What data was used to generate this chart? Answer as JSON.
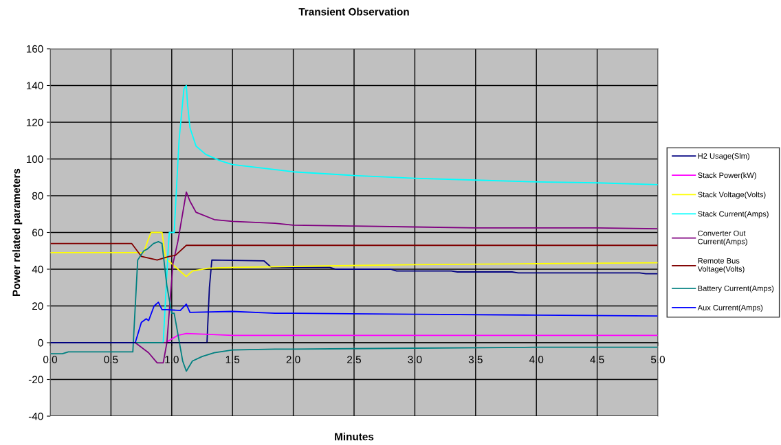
{
  "chart_data": {
    "type": "line",
    "title": "Transient Observation",
    "xlabel": "Minutes",
    "ylabel": "Power related parameters",
    "xlim": [
      0,
      5
    ],
    "xticks": [
      {
        "value": 0,
        "label": "0.0"
      },
      {
        "value": 0.5,
        "label": "0.5"
      },
      {
        "value": 1,
        "label": "1.0"
      },
      {
        "value": 1.5,
        "label": "1.5"
      },
      {
        "value": 2,
        "label": "2.0"
      },
      {
        "value": 2.5,
        "label": "2.5"
      },
      {
        "value": 3,
        "label": "3.0"
      },
      {
        "value": 3.5,
        "label": "3.5"
      },
      {
        "value": 4,
        "label": "4.0"
      },
      {
        "value": 4.5,
        "label": "4.5"
      },
      {
        "value": 5,
        "label": "5.0"
      }
    ],
    "ylim": [
      -40,
      160
    ],
    "yticks": [
      -40,
      -20,
      0,
      20,
      40,
      60,
      80,
      100,
      120,
      140,
      160
    ],
    "grid": true,
    "legend": "right",
    "marker": "none",
    "line_style": "solid",
    "series": [
      {
        "name": "H2 Usage(Slm)",
        "color": "#000080",
        "x": [
          0,
          1.29,
          1.31,
          1.33,
          1.76,
          1.82,
          2.3,
          2.35,
          2.8,
          2.85,
          3.3,
          3.35,
          3.8,
          3.85,
          4.3,
          4.35,
          4.85,
          4.9,
          5.0
        ],
        "values": [
          0,
          0,
          30,
          45,
          44.5,
          41,
          41,
          40,
          40,
          39,
          39,
          38.5,
          38.5,
          38,
          38,
          38,
          38,
          37.5,
          37.5
        ]
      },
      {
        "name": "Stack Power(kW)",
        "color": "#ff00ff",
        "x": [
          0,
          0.95,
          1.05,
          1.12,
          1.3,
          1.5,
          2.0,
          3.0,
          4.0,
          5.0
        ],
        "values": [
          0,
          0,
          4,
          5,
          4.5,
          4,
          4,
          4,
          4,
          4
        ]
      },
      {
        "name": "Stack Voltage(Volts)",
        "color": "#ffff00",
        "x": [
          0,
          0.77,
          0.8,
          0.83,
          0.92,
          0.95,
          1.0,
          1.12,
          1.17,
          1.3,
          1.5,
          2.0,
          3.0,
          4.0,
          5.0
        ],
        "values": [
          49,
          49,
          55,
          60,
          60,
          46,
          43,
          36,
          39,
          40.5,
          41,
          41.5,
          42.5,
          43,
          43.5
        ]
      },
      {
        "name": "Stack Current(Amps)",
        "color": "#00ffff",
        "x": [
          0,
          0.93,
          0.97,
          0.98,
          1.02,
          1.06,
          1.1,
          1.12,
          1.13,
          1.15,
          1.2,
          1.28,
          1.4,
          1.5,
          1.75,
          2.0,
          2.5,
          3.0,
          3.5,
          4.0,
          4.5,
          5.0
        ],
        "values": [
          0,
          0,
          50,
          60,
          60,
          110,
          138,
          140,
          130,
          117,
          107,
          102.5,
          99,
          97,
          95,
          93,
          91,
          89.5,
          88.5,
          87.5,
          87,
          86
        ]
      },
      {
        "name": "Converter Out Current(Amps)",
        "color": "#800080",
        "x": [
          0,
          0.7,
          0.81,
          0.88,
          0.93,
          0.96,
          1.01,
          1.05,
          1.12,
          1.15,
          1.2,
          1.35,
          1.5,
          1.85,
          2.0,
          2.5,
          3.0,
          3.5,
          4.0,
          4.5,
          5.0
        ],
        "values": [
          0,
          0,
          -5.5,
          -11,
          -11,
          0,
          43,
          55,
          82,
          77,
          71,
          67,
          66,
          65,
          64,
          63.5,
          63,
          62.5,
          62.5,
          62.5,
          62
        ]
      },
      {
        "name": "Remote Bus Voltage(Volts)",
        "color": "#800000",
        "x": [
          0,
          0.67,
          0.75,
          0.88,
          0.98,
          1.03,
          1.12,
          2.0,
          3.0,
          4.0,
          5.0
        ],
        "values": [
          54,
          54,
          47,
          45,
          47,
          47.5,
          53,
          53,
          53,
          53,
          53
        ]
      },
      {
        "name": "Battery Current(Amps)",
        "color": "#008080",
        "x": [
          0,
          0.1,
          0.15,
          0.68,
          0.72,
          0.77,
          0.8,
          0.85,
          0.89,
          0.92,
          0.96,
          1.0,
          1.02,
          1.05,
          1.09,
          1.12,
          1.17,
          1.25,
          1.35,
          1.5,
          1.85,
          2.0,
          3.0,
          4.0,
          5.0
        ],
        "values": [
          -6,
          -6,
          -5,
          -5,
          45,
          50,
          51,
          54,
          55,
          54,
          31,
          16,
          16,
          5,
          -10,
          -15.5,
          -10,
          -7.5,
          -5.5,
          -4,
          -3.5,
          -3.5,
          -3,
          -2.5,
          -2.5
        ]
      },
      {
        "name": "Aux Current(Amps)",
        "color": "#0000ff",
        "x": [
          0,
          0.7,
          0.75,
          0.79,
          0.81,
          0.855,
          0.89,
          0.92,
          0.96,
          1.07,
          1.12,
          1.15,
          1.5,
          1.85,
          2.0,
          3.0,
          4.0,
          5.0
        ],
        "values": [
          0,
          0,
          11,
          13,
          12,
          20,
          22,
          18,
          18,
          17.5,
          21,
          16.5,
          17,
          16,
          16,
          15.5,
          15,
          14.5
        ]
      }
    ]
  }
}
